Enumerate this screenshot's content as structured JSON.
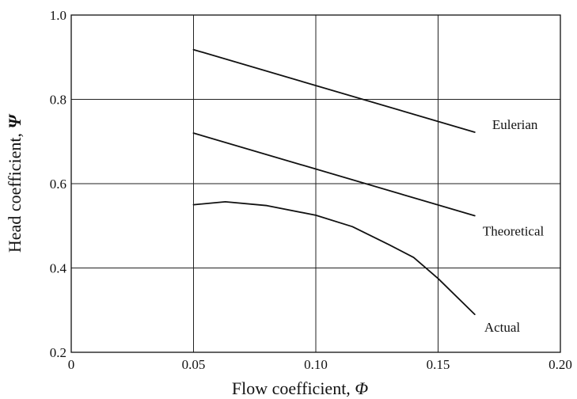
{
  "chart_data": {
    "type": "line",
    "xlabel": "Flow coefficient, ",
    "xlabel_symbol": "Φ",
    "ylabel": "Head coefficient, ",
    "ylabel_symbol": "Ψ",
    "xlim": [
      0,
      0.2
    ],
    "ylim": [
      0.2,
      1.0
    ],
    "x_ticks": [
      0,
      0.05,
      0.1,
      0.15,
      0.2
    ],
    "x_tick_labels": [
      "0",
      "0.05",
      "0.10",
      "0.15",
      "0.20"
    ],
    "y_ticks": [
      0.2,
      0.4,
      0.6,
      0.8,
      1.0
    ],
    "y_tick_labels": [
      "0.2",
      "0.4",
      "0.6",
      "0.8",
      "1.0"
    ],
    "grid": true,
    "series": [
      {
        "name": "Eulerian",
        "x": [
          0.05,
          0.165
        ],
        "y": [
          0.918,
          0.722
        ]
      },
      {
        "name": "Theoretical",
        "x": [
          0.05,
          0.165
        ],
        "y": [
          0.72,
          0.524
        ]
      },
      {
        "name": "Actual",
        "x": [
          0.05,
          0.063,
          0.08,
          0.1,
          0.115,
          0.13,
          0.14,
          0.15,
          0.165
        ],
        "y": [
          0.55,
          0.557,
          0.548,
          0.525,
          0.498,
          0.455,
          0.425,
          0.375,
          0.29
        ]
      }
    ]
  }
}
